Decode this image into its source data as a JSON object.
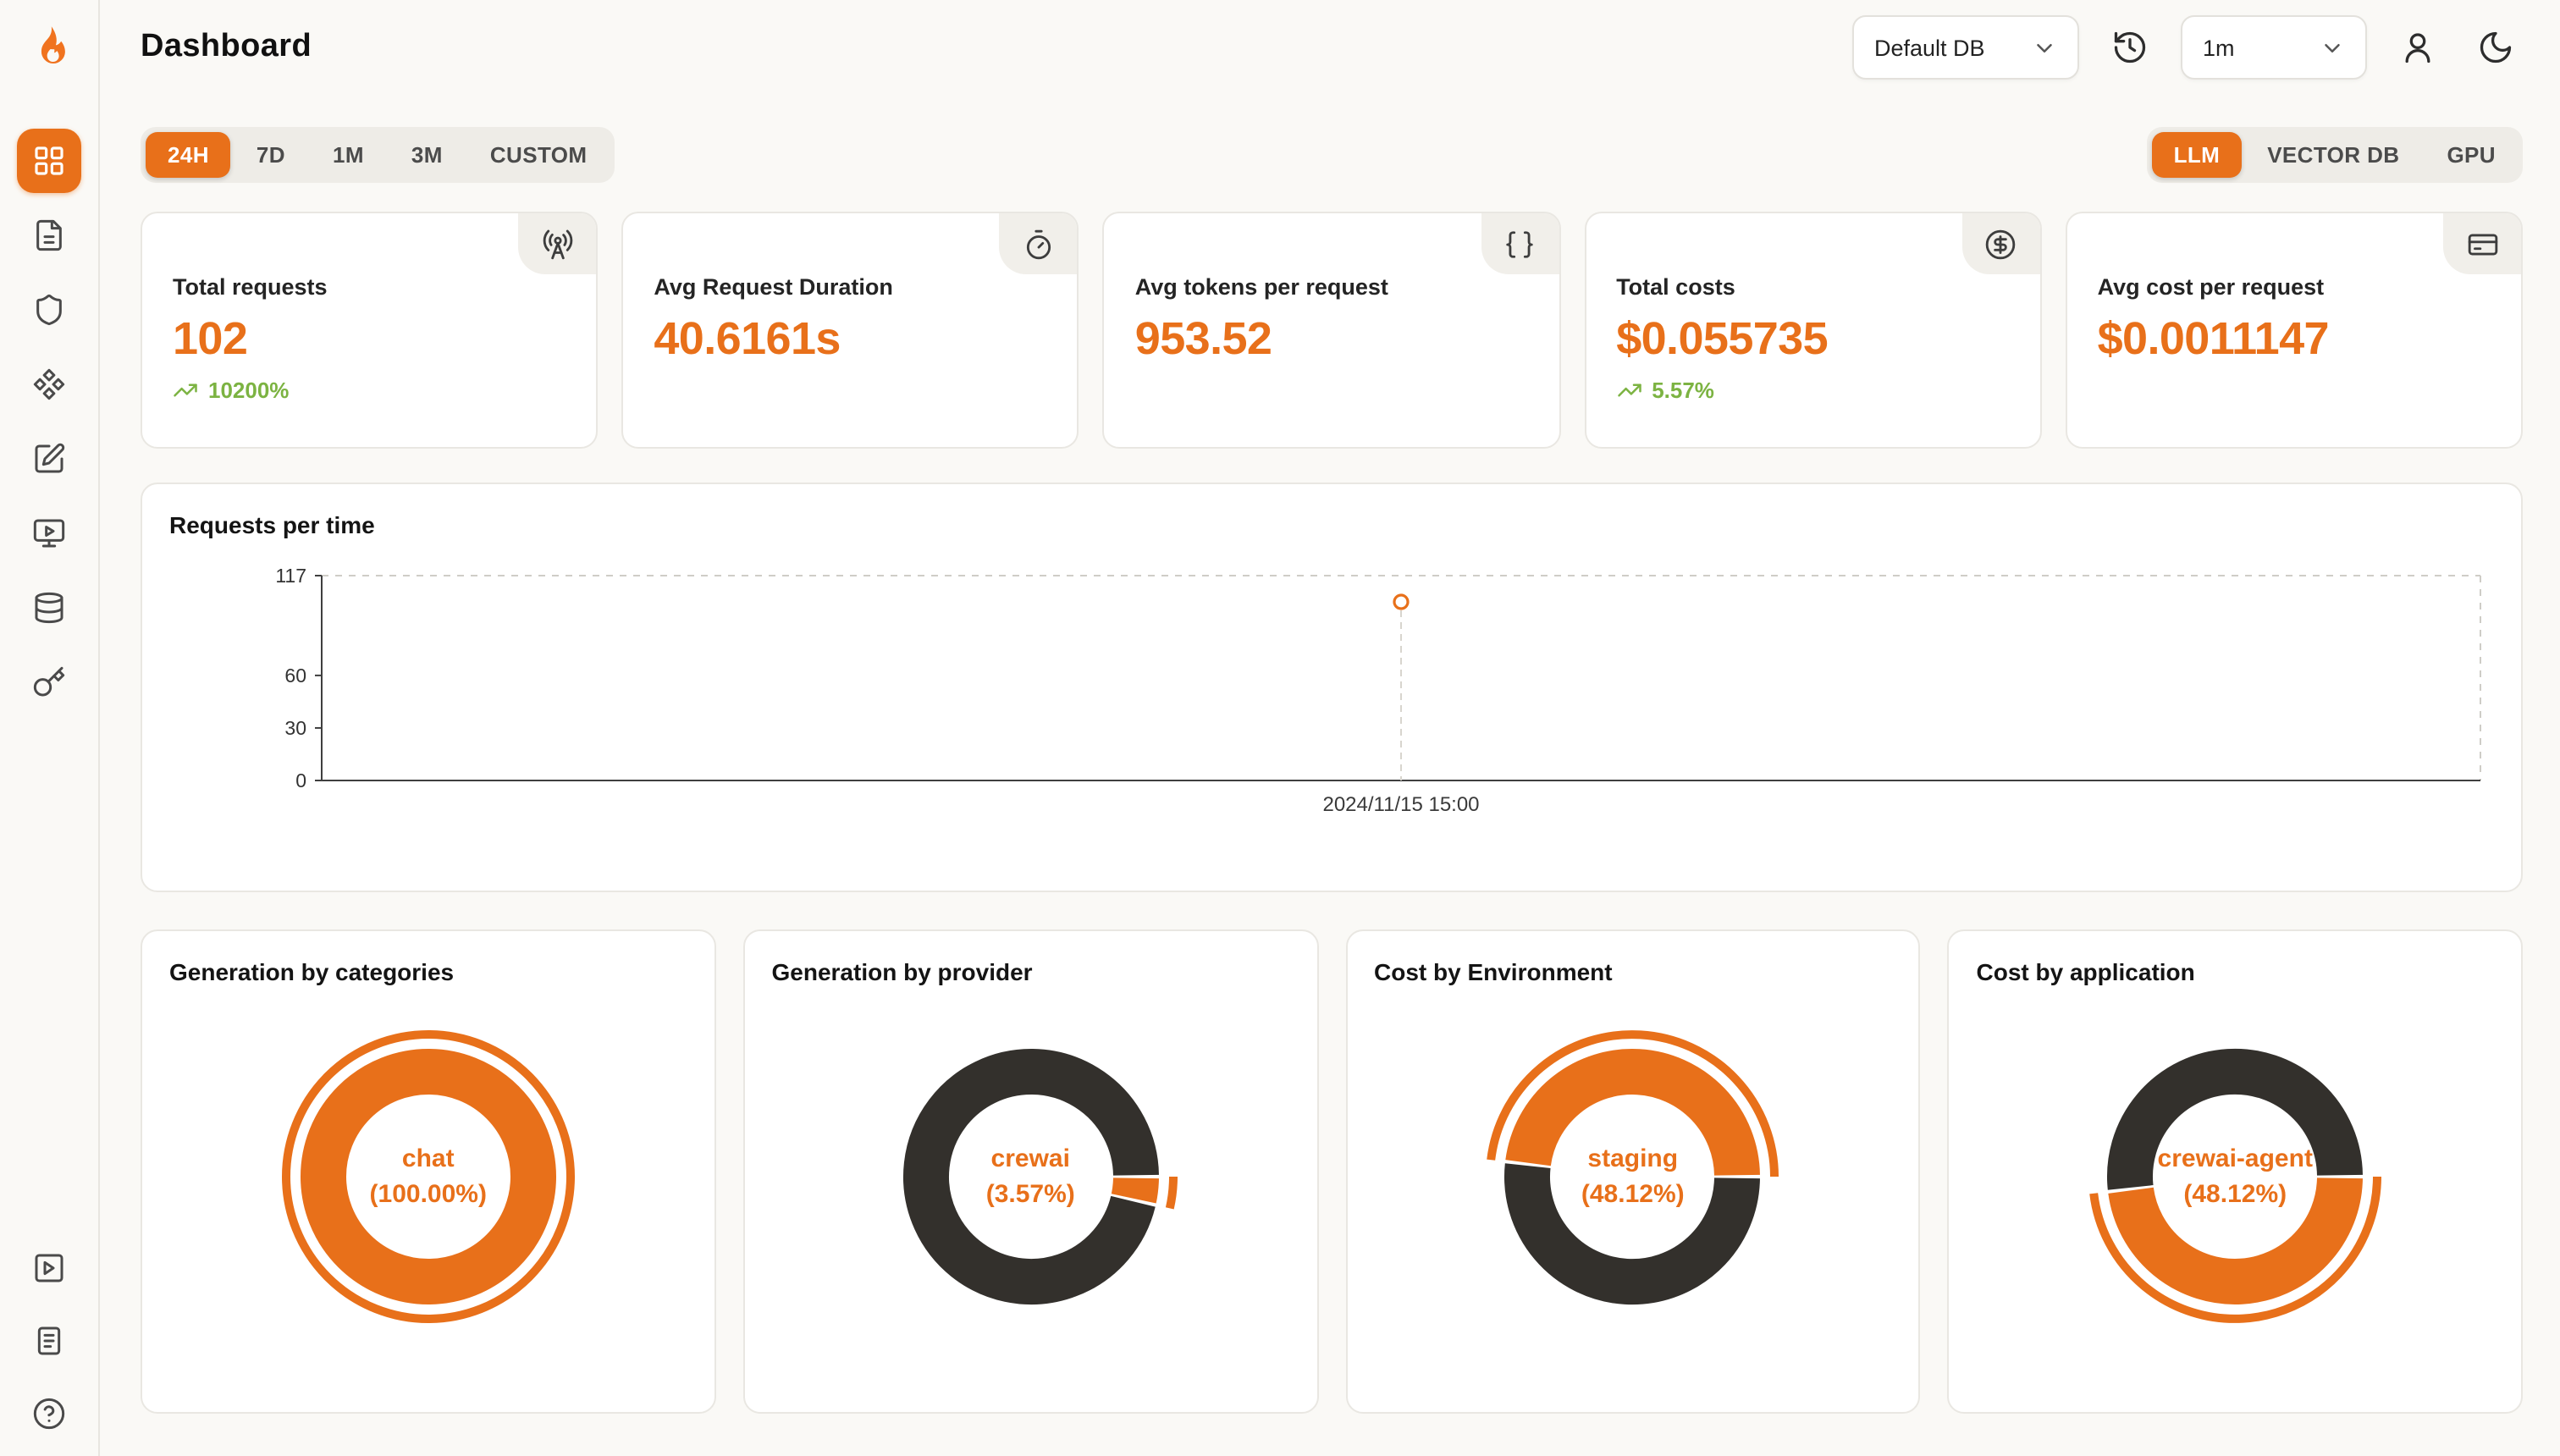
{
  "colors": {
    "accent": "#E8701A",
    "dark_slice": "#33302C",
    "positive": "#7CB342",
    "axis": "#3F3F3F",
    "grid": "#CFCDC7"
  },
  "header": {
    "title": "Dashboard",
    "database_select": {
      "value": "Default DB"
    },
    "interval_select": {
      "value": "1m"
    },
    "icons": [
      "history-icon",
      "user-icon",
      "moon-icon"
    ]
  },
  "sidebar": {
    "logo_icon": "flame-logo",
    "items": [
      {
        "icon": "layout-grid-icon",
        "active": true
      },
      {
        "icon": "file-text-icon",
        "active": false
      },
      {
        "icon": "shield-icon",
        "active": false
      },
      {
        "icon": "component-icon",
        "active": false
      },
      {
        "icon": "square-pen-icon",
        "active": false
      },
      {
        "icon": "monitor-play-icon",
        "active": false
      },
      {
        "icon": "database-icon",
        "active": false
      },
      {
        "icon": "key-icon",
        "active": false
      }
    ],
    "bottom_items": [
      {
        "icon": "square-play-icon"
      },
      {
        "icon": "document-icon"
      },
      {
        "icon": "help-circle-icon"
      }
    ]
  },
  "filters": {
    "time_ranges": [
      "24H",
      "7D",
      "1M",
      "3M",
      "CUSTOM"
    ],
    "active_time_range": "24H",
    "sources": [
      "LLM",
      "VECTOR DB",
      "GPU"
    ],
    "active_source": "LLM"
  },
  "stats": [
    {
      "label": "Total requests",
      "value": "102",
      "delta": "10200%",
      "icon": "radio-tower-icon"
    },
    {
      "label": "Avg Request Duration",
      "value": "40.6161s",
      "icon": "timer-icon"
    },
    {
      "label": "Avg tokens per request",
      "value": "953.52",
      "icon": "braces-icon"
    },
    {
      "label": "Total costs",
      "value": "$0.055735",
      "delta": "5.57%",
      "icon": "circle-dollar-icon"
    },
    {
      "label": "Avg cost per request",
      "value": "$0.0011147",
      "icon": "credit-card-icon"
    }
  ],
  "chart_data": [
    {
      "type": "line",
      "title": "Requests per time",
      "ylabel": "",
      "xlabel": "",
      "ylim": [
        0,
        117
      ],
      "y_ticks": [
        0,
        30,
        60,
        117
      ],
      "x_labels": [
        "2024/11/15 15:00"
      ],
      "points": [
        {
          "x_label": "2024/11/15 15:00",
          "value": 102,
          "x_fraction": 0.5
        }
      ],
      "grid": "dashed-top-right-border",
      "legend": "none",
      "point_color": "#E8701A"
    },
    {
      "type": "pie",
      "title": "Generation by categories",
      "center_label": "chat",
      "center_value": "(100.00%)",
      "series": [
        {
          "label": "chat",
          "value": 100.0,
          "color": "#E8701A",
          "active": true
        }
      ]
    },
    {
      "type": "pie",
      "title": "Generation by provider",
      "center_label": "crewai",
      "center_value": "(3.57%)",
      "series": [
        {
          "label": "other",
          "value": 96.43,
          "color": "#33302C",
          "active": false
        },
        {
          "label": "crewai",
          "value": 3.57,
          "color": "#E8701A",
          "active": true
        }
      ]
    },
    {
      "type": "pie",
      "title": "Cost by Environment",
      "center_label": "staging",
      "center_value": "(48.12%)",
      "series": [
        {
          "label": "staging",
          "value": 48.12,
          "color": "#E8701A",
          "active": true
        },
        {
          "label": "other",
          "value": 51.88,
          "color": "#33302C",
          "active": false
        }
      ]
    },
    {
      "type": "pie",
      "title": "Cost by application",
      "center_label": "crewai-agent",
      "center_value": "(48.12%)",
      "series": [
        {
          "label": "other",
          "value": 51.88,
          "color": "#33302C",
          "active": false
        },
        {
          "label": "crewai-agent",
          "value": 48.12,
          "color": "#E8701A",
          "active": true
        }
      ]
    }
  ]
}
